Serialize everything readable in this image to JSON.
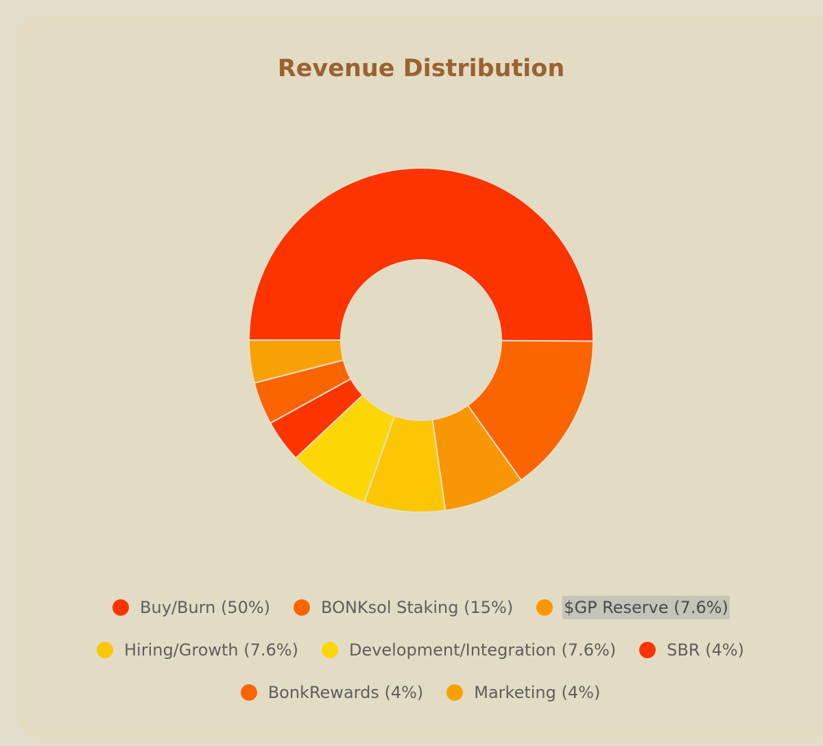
{
  "chart_data": {
    "type": "pie",
    "variant": "donut",
    "title": "Revenue Distribution",
    "categories": [
      "Buy/Burn",
      "BONKsol Staking",
      "$GP Reserve",
      "Hiring/Growth",
      "Development/Integration",
      "SBR",
      "BonkRewards",
      "Marketing"
    ],
    "values": [
      50,
      15,
      7.6,
      7.6,
      7.6,
      4,
      4,
      4
    ],
    "labels": [
      "Buy/Burn (50%)",
      "BONKsol Staking (15%)",
      "$GP Reserve (7.6%)",
      "Hiring/Growth (7.6%)",
      "Development/Integration (7.6%)",
      "SBR (4%)",
      "BonkRewards (4%)",
      "Marketing (4%)"
    ],
    "colors": [
      "#fb3400",
      "#fa6502",
      "#f99603",
      "#fbc705",
      "#fcd705",
      "#fb3400",
      "#fa6502",
      "#f9a103"
    ],
    "legend_position": "bottom",
    "legend_selected": "$GP Reserve (7.6%)"
  }
}
